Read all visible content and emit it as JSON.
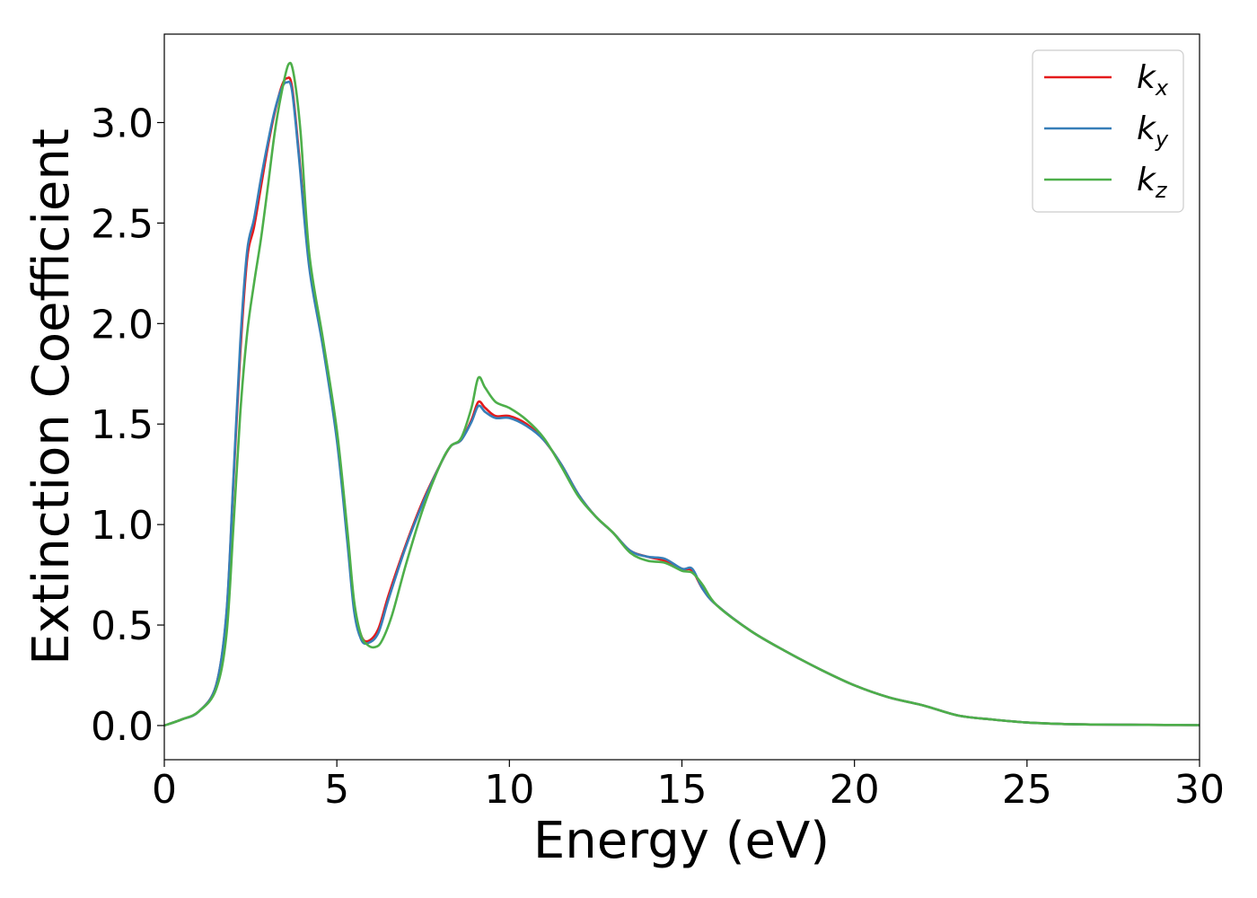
{
  "chart_data": {
    "type": "line",
    "xlabel": "Energy (eV)",
    "ylabel": "Extinction Coefficient",
    "xlim": [
      0,
      30
    ],
    "ylim": [
      -0.17,
      3.44
    ],
    "xticks": [
      "0",
      "5",
      "10",
      "15",
      "20",
      "25",
      "30"
    ],
    "yticks": [
      "0.0",
      "0.5",
      "1.0",
      "1.5",
      "2.0",
      "2.5",
      "3.0"
    ],
    "grid": false,
    "legend_position": "top-right",
    "series": [
      {
        "name": "k_x",
        "label_main": "k",
        "label_sub": "x",
        "color": "#e41a1c",
        "x": [
          0,
          0.5,
          1.0,
          1.5,
          1.8,
          2.0,
          2.2,
          2.4,
          2.6,
          2.8,
          3.0,
          3.2,
          3.4,
          3.55,
          3.7,
          3.9,
          4.2,
          4.6,
          5.0,
          5.3,
          5.5,
          5.7,
          5.9,
          6.2,
          6.5,
          7.0,
          7.5,
          8.0,
          8.3,
          8.6,
          8.9,
          9.1,
          9.3,
          9.6,
          10.0,
          10.5,
          11.0,
          11.5,
          12.0,
          12.5,
          13.0,
          13.5,
          14.0,
          14.5,
          15.0,
          15.3,
          15.6,
          16.0,
          17.0,
          18.0,
          19.0,
          20.0,
          21.0,
          22.0,
          23.0,
          24.0,
          25.0,
          26.0,
          27.0,
          28.0,
          29.0,
          30.0
        ],
        "y": [
          0.0,
          0.03,
          0.07,
          0.2,
          0.55,
          1.2,
          1.85,
          2.32,
          2.48,
          2.68,
          2.88,
          3.05,
          3.18,
          3.22,
          3.18,
          2.85,
          2.3,
          1.9,
          1.45,
          0.95,
          0.6,
          0.45,
          0.42,
          0.48,
          0.65,
          0.9,
          1.12,
          1.3,
          1.39,
          1.42,
          1.52,
          1.61,
          1.58,
          1.54,
          1.54,
          1.5,
          1.42,
          1.3,
          1.15,
          1.04,
          0.96,
          0.87,
          0.84,
          0.82,
          0.78,
          0.77,
          0.68,
          0.6,
          0.47,
          0.37,
          0.28,
          0.2,
          0.14,
          0.1,
          0.05,
          0.03,
          0.015,
          0.008,
          0.005,
          0.004,
          0.003,
          0.002
        ]
      },
      {
        "name": "k_y",
        "label_main": "k",
        "label_sub": "y",
        "color": "#377eb8",
        "x": [
          0,
          0.5,
          1.0,
          1.5,
          1.8,
          2.0,
          2.2,
          2.4,
          2.6,
          2.8,
          3.0,
          3.2,
          3.4,
          3.55,
          3.7,
          3.9,
          4.2,
          4.6,
          5.0,
          5.3,
          5.5,
          5.7,
          5.9,
          6.2,
          6.5,
          7.0,
          7.5,
          8.0,
          8.3,
          8.6,
          8.9,
          9.1,
          9.3,
          9.6,
          10.0,
          10.5,
          11.0,
          11.5,
          12.0,
          12.5,
          13.0,
          13.5,
          14.0,
          14.5,
          15.0,
          15.3,
          15.6,
          16.0,
          17.0,
          18.0,
          19.0,
          20.0,
          21.0,
          22.0,
          23.0,
          24.0,
          25.0,
          26.0,
          27.0,
          28.0,
          29.0,
          30.0
        ],
        "y": [
          0.0,
          0.03,
          0.07,
          0.2,
          0.56,
          1.22,
          1.9,
          2.36,
          2.52,
          2.72,
          2.9,
          3.06,
          3.17,
          3.2,
          3.16,
          2.83,
          2.28,
          1.88,
          1.42,
          0.92,
          0.57,
          0.43,
          0.41,
          0.46,
          0.63,
          0.89,
          1.11,
          1.3,
          1.39,
          1.42,
          1.51,
          1.59,
          1.56,
          1.53,
          1.53,
          1.49,
          1.42,
          1.3,
          1.15,
          1.04,
          0.96,
          0.87,
          0.84,
          0.83,
          0.78,
          0.78,
          0.68,
          0.6,
          0.47,
          0.37,
          0.28,
          0.2,
          0.14,
          0.1,
          0.05,
          0.03,
          0.015,
          0.008,
          0.005,
          0.004,
          0.003,
          0.002
        ]
      },
      {
        "name": "k_z",
        "label_main": "k",
        "label_sub": "z",
        "color": "#4daf4a",
        "x": [
          0,
          0.5,
          1.0,
          1.5,
          1.8,
          2.0,
          2.2,
          2.4,
          2.6,
          2.8,
          3.0,
          3.2,
          3.4,
          3.6,
          3.75,
          3.95,
          4.2,
          4.6,
          5.0,
          5.3,
          5.5,
          5.7,
          5.9,
          6.1,
          6.3,
          6.6,
          7.0,
          7.5,
          8.0,
          8.3,
          8.6,
          8.9,
          9.1,
          9.3,
          9.6,
          10.0,
          10.5,
          11.0,
          11.5,
          12.0,
          12.5,
          13.0,
          13.5,
          14.0,
          14.5,
          15.0,
          15.3,
          15.6,
          16.0,
          17.0,
          18.0,
          19.0,
          20.0,
          21.0,
          22.0,
          23.0,
          24.0,
          25.0,
          26.0,
          27.0,
          28.0,
          29.0,
          30.0
        ],
        "y": [
          0.0,
          0.03,
          0.07,
          0.18,
          0.45,
          0.98,
          1.55,
          1.95,
          2.2,
          2.42,
          2.68,
          2.95,
          3.15,
          3.29,
          3.24,
          2.95,
          2.35,
          1.92,
          1.47,
          0.98,
          0.62,
          0.45,
          0.4,
          0.39,
          0.42,
          0.55,
          0.8,
          1.08,
          1.3,
          1.39,
          1.43,
          1.58,
          1.73,
          1.68,
          1.61,
          1.58,
          1.52,
          1.43,
          1.29,
          1.14,
          1.04,
          0.96,
          0.86,
          0.82,
          0.81,
          0.77,
          0.76,
          0.7,
          0.6,
          0.47,
          0.37,
          0.28,
          0.2,
          0.14,
          0.1,
          0.05,
          0.03,
          0.015,
          0.008,
          0.005,
          0.004,
          0.003,
          0.002
        ]
      }
    ]
  }
}
